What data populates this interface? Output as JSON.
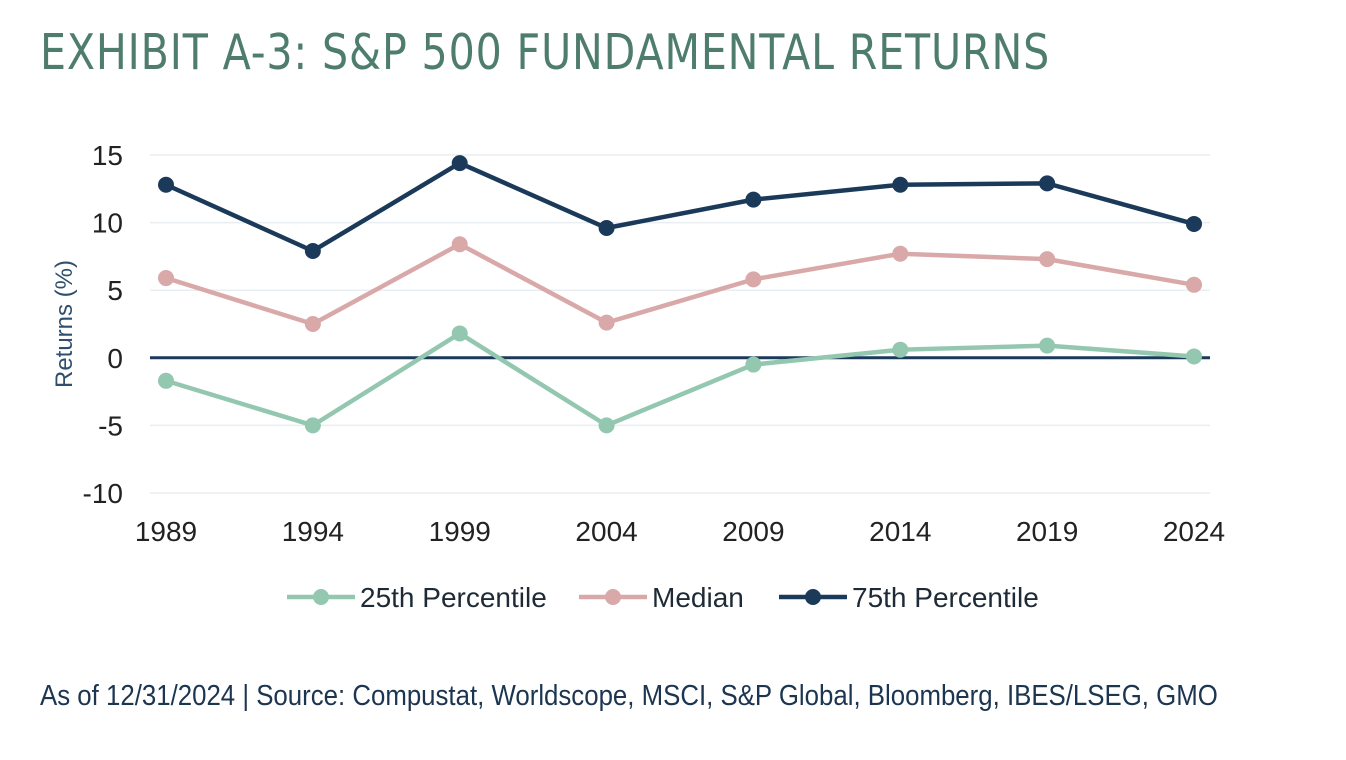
{
  "header": {
    "title": "EXHIBIT A-3: S&P 500 FUNDAMENTAL RETURNS"
  },
  "footer": {
    "source": "As of 12/31/2024 | Source: Compustat, Worldscope, MSCI, S&P Global, Bloomberg, IBES/LSEG, GMO"
  },
  "chart_data": {
    "type": "line",
    "title": "",
    "xlabel": "",
    "ylabel": "Returns (%)",
    "x": [
      "1989",
      "1994",
      "1999",
      "2004",
      "2009",
      "2014",
      "2019",
      "2024"
    ],
    "ylim": [
      -10,
      15
    ],
    "yticks": [
      15,
      10,
      5,
      0,
      -5,
      -10
    ],
    "grid": true,
    "legend_position": "bottom",
    "series": [
      {
        "name": "25th Percentile",
        "color": "#93c7b0",
        "values": [
          -1.7,
          -5.0,
          1.8,
          -5.0,
          -0.5,
          0.6,
          0.9,
          0.1
        ]
      },
      {
        "name": "Median",
        "color": "#d8a9a8",
        "values": [
          5.9,
          2.5,
          8.4,
          2.6,
          5.8,
          7.7,
          7.3,
          5.4
        ]
      },
      {
        "name": "75th Percentile",
        "color": "#1b3a5a",
        "values": [
          12.8,
          7.9,
          14.4,
          9.6,
          11.7,
          12.8,
          12.9,
          9.9
        ]
      }
    ]
  }
}
